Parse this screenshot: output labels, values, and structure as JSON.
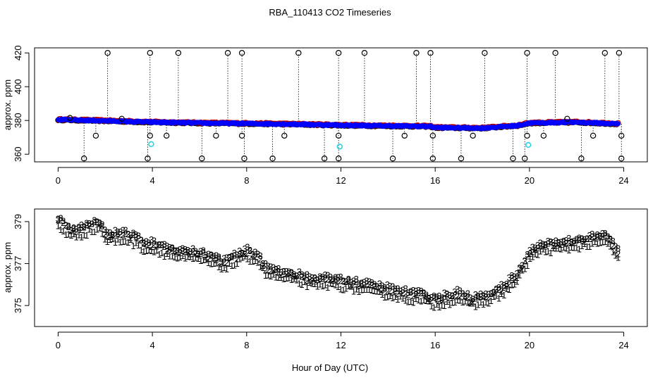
{
  "title": "RBA_110413  CO2 Timeseries",
  "xlabel": "Hour of Day (UTC)",
  "colors": {
    "series_1": "#e00000",
    "series_2": "#00b000",
    "series_3": "#0000ff",
    "raw_points": "#000000",
    "outlier_cyan": "#20d0e0",
    "fit_red": "#e00000"
  },
  "chart_data": [
    {
      "type": "scatter",
      "panel": "top",
      "ylabel": "approx. ppm",
      "xlim": [
        -1,
        25
      ],
      "ylim": [
        355.5,
        423
      ],
      "xticks": [
        0,
        4,
        8,
        12,
        16,
        20,
        24
      ],
      "yticks": [
        360,
        380,
        400,
        420
      ],
      "grid": false,
      "baseline_knots": [
        [
          0,
          380.5
        ],
        [
          2,
          379.8
        ],
        [
          4,
          379
        ],
        [
          6,
          378.5
        ],
        [
          8,
          378.2
        ],
        [
          10,
          377.8
        ],
        [
          12,
          377.2
        ],
        [
          14,
          376.8
        ],
        [
          15.8,
          376.5
        ],
        [
          16,
          375.8
        ],
        [
          18,
          375.5
        ],
        [
          19.5,
          377
        ],
        [
          20,
          378.5
        ],
        [
          22,
          379
        ],
        [
          23.8,
          378
        ]
      ],
      "high_spikes": [
        2.1,
        3.9,
        5.1,
        7.2,
        7.8,
        10.2,
        11.9,
        13.0,
        15.2,
        15.8,
        18.1,
        19.9,
        21.1,
        23.2,
        23.8
      ],
      "low_spikes": [
        1.1,
        3.8,
        6.1,
        7.9,
        9.1,
        11.3,
        11.9,
        14.2,
        15.9,
        17.1,
        19.3,
        19.8,
        22.2,
        23.9
      ],
      "mid_outliers": [
        [
          1.6,
          371
        ],
        [
          3.9,
          371
        ],
        [
          4.6,
          371
        ],
        [
          6.7,
          371
        ],
        [
          7.8,
          371
        ],
        [
          9.6,
          371
        ],
        [
          11.9,
          371
        ],
        [
          14.7,
          371
        ],
        [
          15.9,
          371
        ],
        [
          17.6,
          371
        ],
        [
          19.9,
          371
        ],
        [
          20.6,
          371
        ],
        [
          22.7,
          371
        ],
        [
          23.9,
          371
        ],
        [
          0.5,
          381.5
        ],
        [
          2.7,
          381
        ],
        [
          21.6,
          381
        ]
      ],
      "cyan_points": [
        [
          3.95,
          366
        ],
        [
          11.95,
          364.5
        ],
        [
          19.95,
          365.5
        ]
      ]
    },
    {
      "type": "scatter",
      "panel": "bottom",
      "ylabel": "approx. ppm",
      "xlim": [
        -1,
        25
      ],
      "ylim": [
        374,
        379.6
      ],
      "xticks": [
        0,
        4,
        8,
        12,
        16,
        20,
        24
      ],
      "yticks": [
        375,
        377,
        379
      ],
      "grid": false,
      "series": [
        {
          "name": "1",
          "marker": "1",
          "offset": -0.3
        },
        {
          "name": "2",
          "marker": "2",
          "offset": 0.0
        },
        {
          "name": "3",
          "marker": "3",
          "offset": 0.1
        }
      ],
      "profile_knots": [
        [
          0,
          379.1
        ],
        [
          0.5,
          378.6
        ],
        [
          1,
          378.7
        ],
        [
          1.8,
          379.0
        ],
        [
          2.0,
          378.4
        ],
        [
          3.0,
          378.4
        ],
        [
          3.6,
          378.0
        ],
        [
          4.2,
          377.9
        ],
        [
          5.0,
          377.6
        ],
        [
          6.0,
          377.5
        ],
        [
          6.5,
          377.3
        ],
        [
          7.0,
          377.1
        ],
        [
          7.5,
          377.3
        ],
        [
          8.0,
          377.6
        ],
        [
          8.5,
          377.4
        ],
        [
          8.8,
          376.8
        ],
        [
          9.5,
          376.6
        ],
        [
          10.3,
          376.4
        ],
        [
          11.0,
          376.2
        ],
        [
          11.6,
          376.3
        ],
        [
          12.0,
          376.2
        ],
        [
          13.0,
          376.0
        ],
        [
          14.0,
          375.8
        ],
        [
          14.8,
          375.6
        ],
        [
          15.5,
          375.5
        ],
        [
          16.0,
          375.3
        ],
        [
          17.0,
          375.6
        ],
        [
          17.5,
          375.3
        ],
        [
          18.0,
          375.4
        ],
        [
          18.8,
          375.8
        ],
        [
          19.5,
          376.5
        ],
        [
          20.0,
          377.5
        ],
        [
          20.5,
          377.9
        ],
        [
          21.5,
          378.0
        ],
        [
          22.5,
          378.2
        ],
        [
          23.3,
          378.3
        ],
        [
          23.8,
          377.5
        ]
      ]
    }
  ]
}
